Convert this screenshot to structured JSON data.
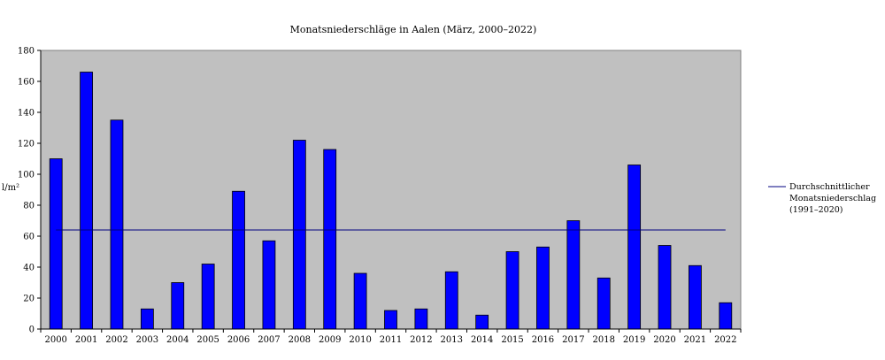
{
  "chart_data": {
    "type": "bar",
    "title": "Monatsniederschläge in Aalen (März, 2000–2022)",
    "ylabel": "l/m²",
    "xlabel": "",
    "ylim": [
      0,
      180
    ],
    "yticks": [
      0,
      20,
      40,
      60,
      80,
      100,
      120,
      140,
      160,
      180
    ],
    "grid": false,
    "categories": [
      "2000",
      "2001",
      "2002",
      "2003",
      "2004",
      "2005",
      "2006",
      "2007",
      "2008",
      "2009",
      "2010",
      "2011",
      "2012",
      "2013",
      "2014",
      "2015",
      "2016",
      "2017",
      "2018",
      "2019",
      "2020",
      "2021",
      "2022"
    ],
    "values": [
      110,
      166,
      135,
      13,
      30,
      42,
      89,
      57,
      122,
      116,
      36,
      12,
      13,
      37,
      9,
      50,
      53,
      70,
      33,
      106,
      54,
      41,
      17
    ],
    "bar_color": "#0000ff",
    "plot_background": "#c0c0c0",
    "reference_line": {
      "value": 64,
      "color": "#000080",
      "legend_lines": [
        "Durchschnittlicher",
        "Monatsniederschlag",
        "(1991–2020)"
      ]
    },
    "legend_position": "right"
  }
}
